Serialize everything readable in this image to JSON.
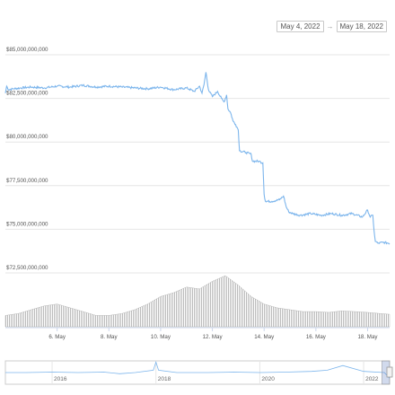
{
  "range_selector": {
    "from": "May 4, 2022",
    "to": "May 18, 2022",
    "arrow": "→"
  },
  "chart_data": {
    "type": "line",
    "title": "",
    "xlabel": "",
    "ylabel": "",
    "ylim": [
      71500000000,
      86000000000
    ],
    "y_ticks": [
      "$85,000,000,000",
      "$82,500,000,000",
      "$80,000,000,000",
      "$77,500,000,000",
      "$75,000,000,000",
      "$72,500,000,000"
    ],
    "y_tick_values": [
      85000000000,
      82500000000,
      80000000000,
      77500000000,
      75000000000,
      72500000000
    ],
    "x_ticks": [
      "6. May",
      "8. May",
      "10. May",
      "12. May",
      "14. May",
      "16. May",
      "18. May"
    ],
    "x_tick_days": [
      6,
      8,
      10,
      12,
      14,
      16,
      18
    ],
    "xlim_days": [
      4.0,
      18.85
    ],
    "series": [
      {
        "name": "",
        "color": "#7cb5ec",
        "days": [
          4.0,
          4.05,
          4.12,
          4.3,
          4.6,
          5.0,
          5.5,
          6.0,
          6.5,
          7.0,
          7.5,
          8.0,
          8.5,
          9.0,
          9.5,
          10.0,
          10.5,
          11.0,
          11.3,
          11.5,
          11.6,
          11.68,
          11.75,
          11.85,
          12.0,
          12.2,
          12.35,
          12.45,
          12.55,
          12.6,
          12.7,
          12.8,
          12.9,
          13.0,
          13.05,
          13.3,
          13.5,
          13.55,
          13.8,
          13.95,
          14.0,
          14.05,
          14.3,
          14.6,
          14.75,
          14.85,
          14.95,
          15.1,
          15.4,
          15.8,
          16.2,
          16.6,
          17.0,
          17.4,
          17.8,
          18.0,
          18.1,
          18.2,
          18.25,
          18.3,
          18.4,
          18.6,
          18.85
        ],
        "values": [
          82800000000,
          83200000000,
          83000000000,
          83050000000,
          83100000000,
          83150000000,
          83100000000,
          83200000000,
          83150000000,
          83250000000,
          83150000000,
          83200000000,
          83150000000,
          83100000000,
          83050000000,
          83150000000,
          83000000000,
          83100000000,
          82900000000,
          83200000000,
          82800000000,
          83300000000,
          84000000000,
          83000000000,
          82600000000,
          82900000000,
          82500000000,
          82300000000,
          82700000000,
          81900000000,
          81700000000,
          81200000000,
          81000000000,
          80700000000,
          79500000000,
          79400000000,
          79300000000,
          78900000000,
          78900000000,
          78800000000,
          77000000000,
          76600000000,
          76600000000,
          76700000000,
          76900000000,
          76300000000,
          76000000000,
          75900000000,
          75800000000,
          75900000000,
          75800000000,
          75900000000,
          75800000000,
          75900000000,
          75700000000,
          76100000000,
          75700000000,
          75800000000,
          74900000000,
          74300000000,
          74200000000,
          74250000000,
          74200000000
        ]
      }
    ],
    "volume": {
      "color": "#bbbbbb",
      "days": [
        4.0,
        4.5,
        5.0,
        5.5,
        6.0,
        6.5,
        7.0,
        7.5,
        8.0,
        8.5,
        9.0,
        9.5,
        10.0,
        10.5,
        11.0,
        11.5,
        12.0,
        12.5,
        13.0,
        13.5,
        14.0,
        14.5,
        15.0,
        15.5,
        16.0,
        16.5,
        17.0,
        17.5,
        18.0,
        18.5,
        18.85
      ],
      "values": [
        0.3,
        0.35,
        0.45,
        0.55,
        0.6,
        0.5,
        0.4,
        0.3,
        0.3,
        0.35,
        0.45,
        0.6,
        0.8,
        0.9,
        1.05,
        1.0,
        1.2,
        1.35,
        1.1,
        0.8,
        0.6,
        0.5,
        0.45,
        0.4,
        0.4,
        0.38,
        0.42,
        0.4,
        0.38,
        0.35,
        0.33
      ]
    }
  },
  "navigator": {
    "labels": [
      "2016",
      "2018",
      "2020",
      "2022"
    ],
    "label_years": [
      2016,
      2018,
      2020,
      2022
    ],
    "xlim_years": [
      2015.1,
      2022.5
    ],
    "selection_years": [
      2022.35,
      2022.5
    ],
    "line_years": [
      2015.1,
      2015.5,
      2016,
      2016.5,
      2017,
      2017.3,
      2017.6,
      2017.95,
      2018.0,
      2018.05,
      2018.4,
      2019,
      2019.5,
      2020,
      2020.5,
      2021,
      2021.3,
      2021.6,
      2022,
      2022.4,
      2022.5
    ],
    "line_values": [
      0.5,
      0.5,
      0.52,
      0.5,
      0.52,
      0.45,
      0.5,
      0.6,
      0.95,
      0.6,
      0.5,
      0.5,
      0.52,
      0.5,
      0.52,
      0.55,
      0.6,
      0.8,
      0.55,
      0.5,
      0.25
    ]
  }
}
